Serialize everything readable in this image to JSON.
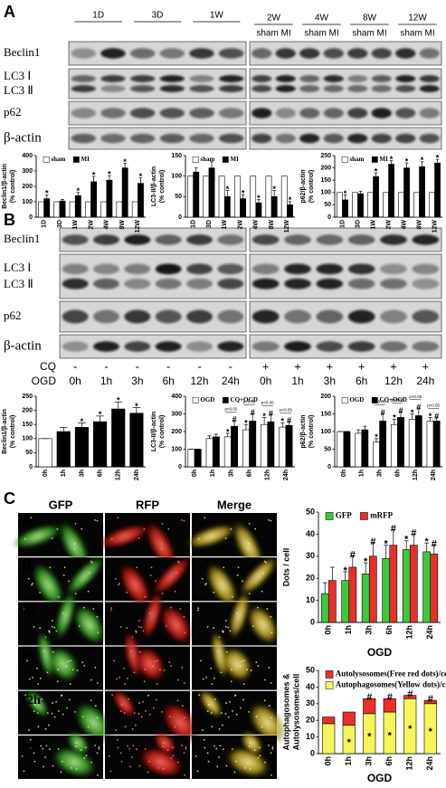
{
  "panel_labels": [
    "A",
    "B",
    "C"
  ],
  "blot_a": {
    "groups": [
      "1D",
      "3D",
      "1W",
      "2W",
      "4W",
      "8W",
      "12W"
    ],
    "lane_label": "sham MI",
    "rows": [
      "Beclin1",
      "LC3 Ⅰ",
      "LC3 Ⅱ",
      "p62",
      "β-actin"
    ]
  },
  "blot_b": {
    "rows": [
      "Beclin1",
      "LC3 Ⅰ",
      "LC3 Ⅱ",
      "p62",
      "β-actin"
    ],
    "cq_label": "CQ",
    "ogd_label": "OGD",
    "minus": "-",
    "plus": "+",
    "times": [
      "0h",
      "1h",
      "3h",
      "6h",
      "12h",
      "24h"
    ]
  },
  "imaging": {
    "channels": [
      "GFP",
      "RFP",
      "Merge"
    ],
    "times": [
      "0h",
      "1h",
      "3h",
      "6h",
      "12h",
      "24h"
    ]
  },
  "chart_data": [
    {
      "type": "bar",
      "y_label": [
        "Beclin1/β-actin",
        "(% control)"
      ],
      "categories": [
        "1D",
        "3D",
        "1W",
        "2W",
        "4W",
        "8W",
        "12W"
      ],
      "series": [
        {
          "name": "sham",
          "color": "#ffffff",
          "values": [
            100,
            100,
            100,
            100,
            100,
            100,
            100
          ]
        },
        {
          "name": "MI",
          "color": "#000000",
          "values": [
            120,
            105,
            140,
            230,
            240,
            320,
            220
          ],
          "errors": [
            25,
            10,
            20,
            35,
            30,
            30,
            35
          ],
          "markers": [
            "*",
            null,
            "*",
            "*",
            "*",
            "*",
            "*"
          ]
        }
      ],
      "ylim": [
        0,
        400
      ],
      "yticks": [
        0,
        100,
        200,
        300,
        400
      ],
      "legend": "top"
    },
    {
      "type": "bar",
      "y_label": [
        "LC3-II/β-actin",
        "(% control)"
      ],
      "categories": [
        "1D",
        "3D",
        "1W",
        "2W",
        "4W",
        "8W",
        "12W"
      ],
      "series": [
        {
          "name": "sham",
          "color": "#ffffff",
          "values": [
            100,
            100,
            100,
            100,
            100,
            100,
            100
          ]
        },
        {
          "name": "MI",
          "color": "#000000",
          "values": [
            110,
            120,
            50,
            45,
            35,
            50,
            30
          ],
          "errors": [
            10,
            15,
            15,
            10,
            8,
            15,
            8
          ],
          "markers": [
            null,
            null,
            "*",
            "*",
            "*",
            "*",
            "*"
          ]
        }
      ],
      "ylim": [
        0,
        150
      ],
      "yticks": [
        0,
        50,
        100,
        150
      ],
      "legend": "top"
    },
    {
      "type": "bar",
      "y_label": [
        "p62/β-actin",
        "(% control)"
      ],
      "categories": [
        "1D",
        "3D",
        "1W",
        "2W",
        "4W",
        "8W",
        "12W"
      ],
      "series": [
        {
          "name": "sham",
          "color": "#ffffff",
          "values": [
            100,
            100,
            100,
            100,
            100,
            100,
            100
          ]
        },
        {
          "name": "MI",
          "color": "#000000",
          "values": [
            70,
            95,
            165,
            215,
            200,
            205,
            220
          ],
          "errors": [
            20,
            10,
            15,
            15,
            20,
            20,
            15
          ],
          "markers": [
            "*",
            null,
            "*",
            "*",
            "*",
            "*",
            "*"
          ]
        }
      ],
      "ylim": [
        0,
        250
      ],
      "yticks": [
        0,
        50,
        100,
        150,
        200,
        250
      ],
      "legend": "top"
    },
    {
      "type": "bar",
      "y_label": [
        "Beclin1/β-actin",
        "(% control)"
      ],
      "categories": [
        "0h",
        "1h",
        "3h",
        "6h",
        "12h",
        "24h"
      ],
      "series": [
        {
          "colors": [
            "#ffffff",
            "#000000",
            "#000000",
            "#000000",
            "#000000",
            "#000000"
          ],
          "values": [
            100,
            125,
            140,
            160,
            205,
            190
          ],
          "errors": [
            0,
            15,
            15,
            20,
            25,
            20
          ],
          "markers": [
            null,
            null,
            "*",
            "*",
            "*",
            "*"
          ]
        }
      ],
      "ylim": [
        0,
        250
      ],
      "yticks": [
        0,
        50,
        100,
        150,
        200,
        250
      ]
    },
    {
      "type": "bar",
      "y_label": [
        "LC3-II/β-actin",
        "(% control)"
      ],
      "categories": [
        "0h",
        "1h",
        "3h",
        "6h",
        "12h",
        "24h"
      ],
      "series": [
        {
          "name": "OGD",
          "color": "#ffffff",
          "values": [
            100,
            160,
            170,
            210,
            240,
            225
          ],
          "errors": [
            0,
            15,
            20,
            30,
            40,
            25
          ],
          "markers": [
            null,
            null,
            "*",
            "*",
            "*",
            "*"
          ]
        },
        {
          "name": "CQ+OGD",
          "color": "#000000",
          "values": [
            100,
            170,
            230,
            260,
            255,
            235
          ],
          "errors": [
            0,
            15,
            30,
            40,
            40,
            20
          ],
          "markers": [
            null,
            null,
            "#",
            "#",
            "#",
            "#"
          ]
        }
      ],
      "p_labels": [
        null,
        null,
        "p<0.02",
        "p<0.02",
        "p<0.05",
        "p<0.05"
      ],
      "ylim": [
        0,
        400
      ],
      "yticks": [
        0,
        100,
        200,
        300,
        400
      ],
      "legend": "top"
    },
    {
      "type": "bar",
      "y_label": [
        "p62/β-actin",
        "(% control)"
      ],
      "categories": [
        "0h",
        "1h",
        "3h",
        "6h",
        "12h",
        "24h"
      ],
      "series": [
        {
          "name": "OGD",
          "color": "#ffffff",
          "values": [
            100,
            95,
            70,
            120,
            135,
            130
          ],
          "errors": [
            0,
            10,
            10,
            15,
            15,
            10
          ],
          "markers": [
            null,
            null,
            "*",
            "*",
            "*",
            "*"
          ]
        },
        {
          "name": "CQ+OGD",
          "color": "#000000",
          "values": [
            100,
            105,
            130,
            140,
            145,
            130
          ],
          "errors": [
            0,
            10,
            20,
            15,
            20,
            10
          ],
          "markers": [
            null,
            null,
            "#",
            "#",
            "#",
            "#"
          ]
        }
      ],
      "p_labels": [
        null,
        null,
        "p<0.05",
        "p<0.05",
        "p<0.05",
        "p<0.05"
      ],
      "ylim": [
        0,
        200
      ],
      "yticks": [
        0,
        50,
        100,
        150,
        200
      ],
      "legend": "top"
    },
    {
      "type": "bar",
      "y_label": [
        "Dots / cell"
      ],
      "x_label": "OGD",
      "categories": [
        "0h",
        "1h",
        "3h",
        "6h",
        "12h",
        "24h"
      ],
      "series": [
        {
          "name": "GFP",
          "color": "#3cc83c",
          "values": [
            13,
            19,
            22,
            29,
            33,
            32
          ],
          "errors": [
            5,
            4,
            5,
            6,
            4,
            4
          ],
          "markers": [
            null,
            "*",
            "*",
            "*",
            "*",
            "*"
          ]
        },
        {
          "name": "mRFP",
          "color": "#e8302a",
          "values": [
            19,
            25,
            30,
            35,
            35,
            31
          ],
          "errors": [
            6,
            5,
            6,
            7,
            5,
            4
          ],
          "markers": [
            null,
            "#",
            "#",
            "#",
            "#",
            "#"
          ]
        }
      ],
      "ylim": [
        0,
        50
      ],
      "yticks": [
        0,
        10,
        20,
        30,
        40,
        50
      ],
      "legend": "top"
    },
    {
      "type": "stacked_bar",
      "y_label": [
        "Autophagosomes &",
        "Autolysosomes/cell"
      ],
      "x_label": "OGD",
      "categories": [
        "0h",
        "1h",
        "3h",
        "6h",
        "12h",
        "24h"
      ],
      "series": [
        {
          "name": "Autolysosomes(Free red dots)/cell",
          "color": "#e8302a",
          "values": [
            4,
            8,
            9,
            8,
            2,
            2
          ],
          "markers": [
            null,
            null,
            "#",
            "#",
            "#",
            "#"
          ]
        },
        {
          "name": "Autophagosomes(Yellow dots)/cell",
          "color": "#f5f55a",
          "values": [
            18,
            17,
            24,
            25,
            33,
            30
          ],
          "markers": [
            null,
            "*",
            "*",
            "*",
            "*",
            "*"
          ]
        }
      ],
      "ylim": [
        0,
        50
      ],
      "yticks": [
        0,
        10,
        20,
        30,
        40,
        50
      ],
      "legend": "top"
    }
  ]
}
